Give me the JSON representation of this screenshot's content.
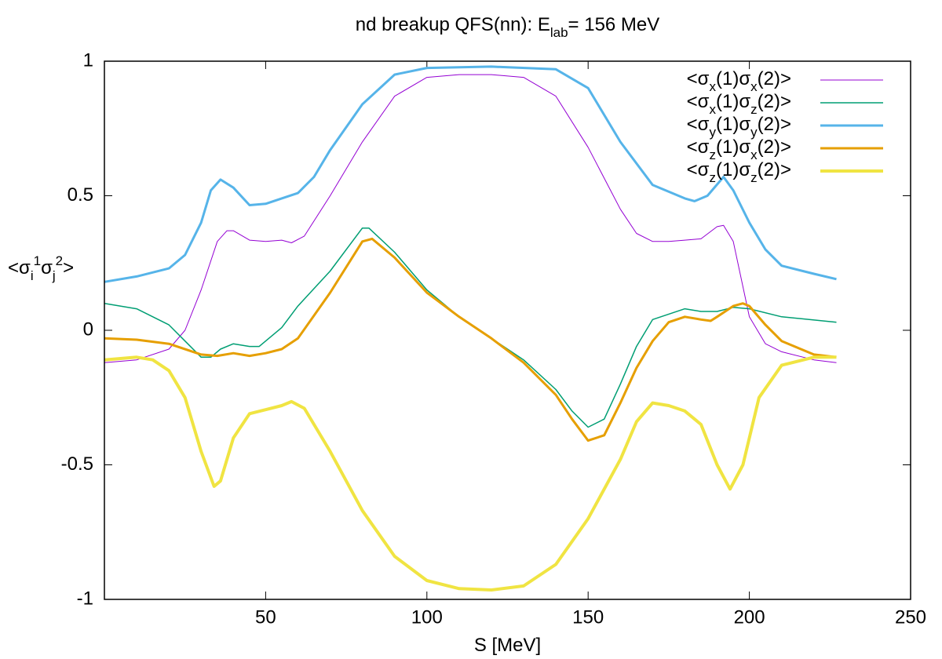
{
  "chart_data": {
    "type": "line",
    "title": [
      {
        "text": "nd breakup QFS(nn): E"
      },
      {
        "text": "lab",
        "script": "sub"
      },
      {
        "text": "=  156 MeV"
      }
    ],
    "x_label": [
      {
        "text": "S [MeV]"
      }
    ],
    "y_label": [
      {
        "text": "<σ"
      },
      {
        "text": "i",
        "script": "sub"
      },
      {
        "text": "1",
        "script": "super"
      },
      {
        "text": "σ"
      },
      {
        "text": "j",
        "script": "sub"
      },
      {
        "text": "2",
        "script": "super"
      },
      {
        "text": ">"
      }
    ],
    "xlim": [
      0,
      250
    ],
    "xticks": [
      50,
      100,
      150,
      200,
      250
    ],
    "ylim": [
      -1,
      1
    ],
    "yticks": [
      -1,
      -0.5,
      0,
      0.5,
      1
    ],
    "legend": "top-right",
    "series": [
      {
        "name": [
          {
            "text": "<σ"
          },
          {
            "text": "x",
            "script": "sub"
          },
          {
            "text": "(1)σ"
          },
          {
            "text": "x",
            "script": "sub"
          },
          {
            "text": "(2)>"
          }
        ],
        "color": "#9400d3",
        "width": 1,
        "x": [
          0,
          10,
          20,
          25,
          30,
          35,
          38,
          40,
          45,
          50,
          55,
          58,
          62,
          70,
          80,
          90,
          100,
          110,
          120,
          130,
          140,
          150,
          160,
          165,
          170,
          175,
          180,
          185,
          190,
          192,
          195,
          200,
          205,
          210,
          220,
          227
        ],
        "values": [
          -0.12,
          -0.11,
          -0.07,
          0.0,
          0.15,
          0.33,
          0.37,
          0.37,
          0.335,
          0.33,
          0.335,
          0.325,
          0.35,
          0.5,
          0.7,
          0.87,
          0.94,
          0.95,
          0.95,
          0.94,
          0.87,
          0.68,
          0.45,
          0.36,
          0.33,
          0.33,
          0.335,
          0.34,
          0.385,
          0.39,
          0.33,
          0.05,
          -0.05,
          -0.08,
          -0.11,
          -0.12
        ]
      },
      {
        "name": [
          {
            "text": "<σ"
          },
          {
            "text": "x",
            "script": "sub"
          },
          {
            "text": "(1)σ"
          },
          {
            "text": "z",
            "script": "sub"
          },
          {
            "text": "(2)>"
          }
        ],
        "color": "#009e73",
        "width": 1.5,
        "x": [
          0,
          10,
          20,
          25,
          30,
          33,
          36,
          40,
          45,
          48,
          55,
          60,
          70,
          80,
          82,
          90,
          100,
          110,
          120,
          130,
          140,
          145,
          150,
          155,
          160,
          165,
          170,
          180,
          185,
          190,
          195,
          200,
          210,
          227
        ],
        "values": [
          0.1,
          0.08,
          0.02,
          -0.04,
          -0.1,
          -0.1,
          -0.07,
          -0.05,
          -0.06,
          -0.06,
          0.01,
          0.09,
          0.22,
          0.38,
          0.38,
          0.29,
          0.15,
          0.05,
          -0.03,
          -0.11,
          -0.22,
          -0.3,
          -0.36,
          -0.33,
          -0.2,
          -0.06,
          0.04,
          0.08,
          0.07,
          0.07,
          0.085,
          0.08,
          0.05,
          0.03
        ]
      },
      {
        "name": [
          {
            "text": "<σ"
          },
          {
            "text": "y",
            "script": "sub"
          },
          {
            "text": "(1)σ"
          },
          {
            "text": "y",
            "script": "sub"
          },
          {
            "text": "(2)>"
          }
        ],
        "color": "#56b4e9",
        "width": 3,
        "x": [
          0,
          10,
          20,
          25,
          30,
          33,
          36,
          40,
          45,
          50,
          55,
          60,
          65,
          70,
          80,
          90,
          100,
          120,
          140,
          150,
          160,
          170,
          180,
          183,
          187,
          192,
          195,
          200,
          205,
          210,
          220,
          227
        ],
        "values": [
          0.18,
          0.2,
          0.23,
          0.28,
          0.4,
          0.52,
          0.56,
          0.53,
          0.465,
          0.47,
          0.49,
          0.51,
          0.57,
          0.67,
          0.84,
          0.95,
          0.975,
          0.98,
          0.97,
          0.9,
          0.7,
          0.54,
          0.49,
          0.48,
          0.5,
          0.57,
          0.52,
          0.4,
          0.3,
          0.24,
          0.21,
          0.19
        ]
      },
      {
        "name": [
          {
            "text": "<σ"
          },
          {
            "text": "z",
            "script": "sub"
          },
          {
            "text": "(1)σ"
          },
          {
            "text": "x",
            "script": "sub"
          },
          {
            "text": "(2)>"
          }
        ],
        "color": "#e69f00",
        "width": 3,
        "x": [
          0,
          10,
          20,
          30,
          35,
          40,
          45,
          50,
          55,
          60,
          70,
          80,
          83,
          90,
          100,
          110,
          120,
          130,
          140,
          145,
          150,
          155,
          160,
          165,
          170,
          175,
          180,
          185,
          188,
          190,
          195,
          198,
          200,
          205,
          210,
          220,
          227
        ],
        "values": [
          -0.03,
          -0.035,
          -0.05,
          -0.09,
          -0.095,
          -0.085,
          -0.095,
          -0.085,
          -0.07,
          -0.03,
          0.14,
          0.33,
          0.34,
          0.27,
          0.14,
          0.05,
          -0.03,
          -0.12,
          -0.24,
          -0.33,
          -0.41,
          -0.39,
          -0.27,
          -0.14,
          -0.04,
          0.03,
          0.05,
          0.04,
          0.035,
          0.05,
          0.09,
          0.1,
          0.09,
          0.02,
          -0.04,
          -0.09,
          -0.1
        ]
      },
      {
        "name": [
          {
            "text": "<σ"
          },
          {
            "text": "z",
            "script": "sub"
          },
          {
            "text": "(1)σ"
          },
          {
            "text": "z",
            "script": "sub"
          },
          {
            "text": "(2)>"
          }
        ],
        "color": "#f0e442",
        "width": 4,
        "x": [
          0,
          10,
          15,
          20,
          25,
          30,
          34,
          36,
          40,
          45,
          50,
          55,
          58,
          62,
          70,
          80,
          90,
          100,
          110,
          120,
          130,
          140,
          150,
          160,
          165,
          170,
          175,
          180,
          185,
          190,
          194,
          198,
          203,
          210,
          220,
          227
        ],
        "values": [
          -0.11,
          -0.1,
          -0.11,
          -0.15,
          -0.25,
          -0.45,
          -0.58,
          -0.56,
          -0.4,
          -0.31,
          -0.295,
          -0.28,
          -0.265,
          -0.29,
          -0.45,
          -0.67,
          -0.84,
          -0.93,
          -0.96,
          -0.965,
          -0.95,
          -0.87,
          -0.7,
          -0.48,
          -0.34,
          -0.27,
          -0.28,
          -0.3,
          -0.35,
          -0.5,
          -0.59,
          -0.5,
          -0.25,
          -0.13,
          -0.1,
          -0.1
        ]
      }
    ]
  }
}
